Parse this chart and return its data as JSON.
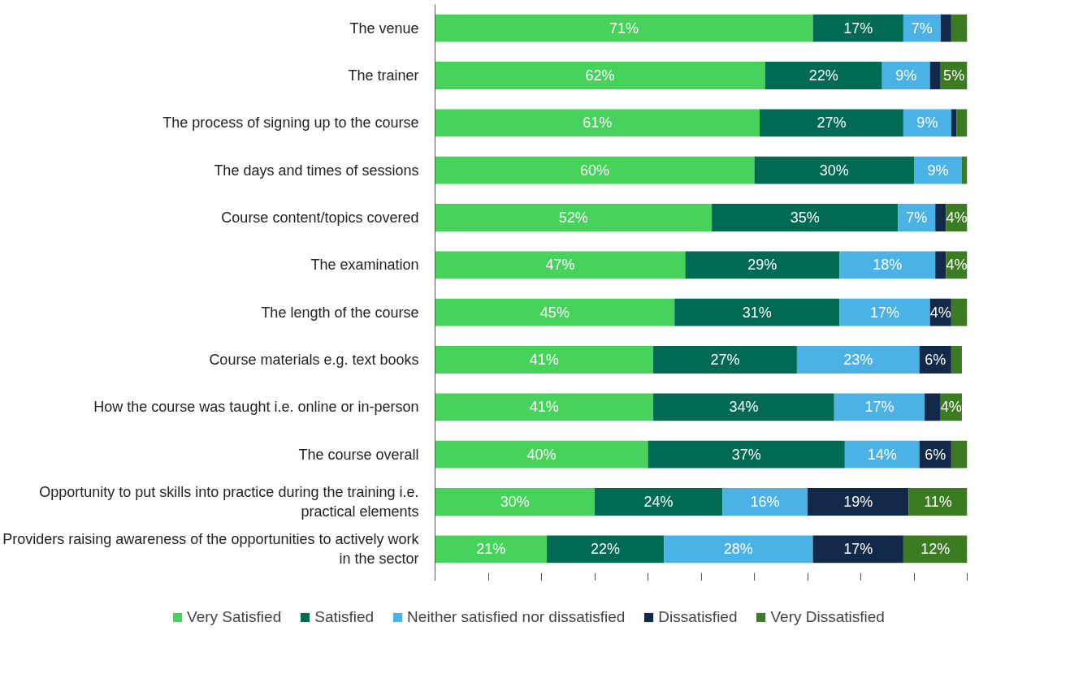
{
  "chart_data": {
    "type": "bar",
    "orientation": "horizontal",
    "stacked": true,
    "categories": [
      "The venue",
      "The trainer",
      "The process of signing up to the course",
      "The days and times of sessions",
      "Course content/topics covered",
      "The examination",
      "The length of the course",
      "Course materials e.g. text books",
      "How the course was taught i.e. online or in-person",
      "The course overall",
      "Opportunity to put skills into practice during the training i.e. practical elements",
      "Providers raising awareness of the opportunities to actively work in the sector"
    ],
    "series": [
      {
        "name": "Very Satisfied",
        "color": "#47d35b",
        "values": [
          71,
          62,
          61,
          60,
          52,
          47,
          45,
          41,
          41,
          40,
          30,
          21
        ],
        "value_labels": [
          "71%",
          "62%",
          "61%",
          "60%",
          "52%",
          "47%",
          "45%",
          "41%",
          "41%",
          "40%",
          "30%",
          "21%"
        ]
      },
      {
        "name": "Satisfied",
        "color": "#006a52",
        "values": [
          17,
          22,
          27,
          30,
          35,
          29,
          31,
          27,
          34,
          37,
          24,
          22
        ],
        "value_labels": [
          "17%",
          "22%",
          "27%",
          "30%",
          "35%",
          "29%",
          "31%",
          "27%",
          "34%",
          "37%",
          "24%",
          "22%"
        ]
      },
      {
        "name": "Neither satisfied nor dissatisfied",
        "color": "#4ab2e4",
        "values": [
          7,
          9,
          9,
          9,
          7,
          18,
          17,
          23,
          17,
          14,
          16,
          28
        ],
        "value_labels": [
          "7%",
          "9%",
          "9%",
          "9%",
          "7%",
          "18%",
          "17%",
          "23%",
          "17%",
          "14%",
          "16%",
          "28%"
        ]
      },
      {
        "name": "Dissatisfied",
        "color": "#13294a",
        "values": [
          2,
          2,
          1,
          0,
          2,
          2,
          4,
          6,
          3,
          6,
          19,
          17
        ],
        "value_labels": [
          null,
          null,
          null,
          null,
          null,
          null,
          "4%",
          "6%",
          null,
          "6%",
          "19%",
          "17%"
        ]
      },
      {
        "name": "Very Dissatisfied",
        "color": "#3b7c23",
        "values": [
          3,
          5,
          2,
          1,
          4,
          4,
          3,
          2,
          4,
          3,
          11,
          12
        ],
        "value_labels": [
          null,
          "5%",
          null,
          null,
          "4%",
          "4%",
          null,
          null,
          "4%",
          null,
          "11%",
          "12%"
        ]
      }
    ],
    "xlim": [
      0,
      100
    ],
    "xticks": [
      {
        "value": 0,
        "label": null
      },
      {
        "value": 10,
        "label": null
      },
      {
        "value": 20,
        "label": null
      },
      {
        "value": 30,
        "label": null
      },
      {
        "value": 40,
        "label": null
      },
      {
        "value": 50,
        "label": null
      },
      {
        "value": 60,
        "label": null
      },
      {
        "value": 70,
        "label": null
      },
      {
        "value": 80,
        "label": null
      },
      {
        "value": 90,
        "label": null
      },
      {
        "value": 100,
        "label": null
      }
    ],
    "tick_labels": "y",
    "legend": "bottom"
  }
}
